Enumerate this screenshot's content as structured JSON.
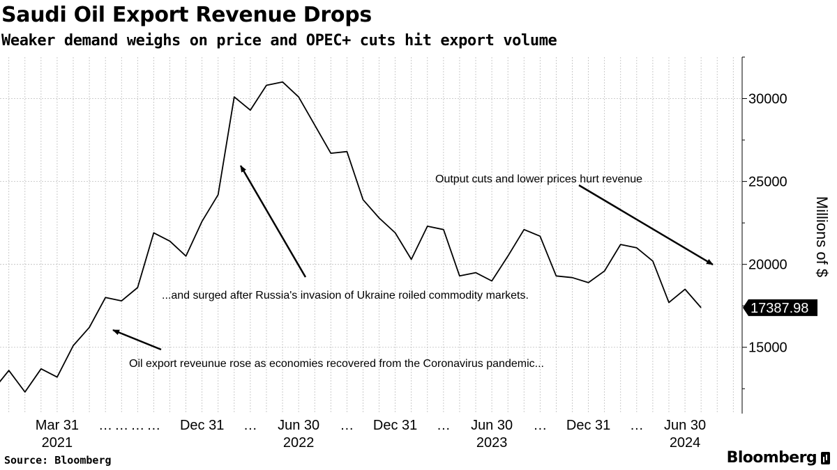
{
  "header": {
    "title": "Saudi Oil Export Revenue Drops",
    "subtitle": "Weaker demand weighs on price and OPEC+ cuts hit export volume"
  },
  "footer": {
    "source": "Source: Bloomberg",
    "logo": "Bloomberg"
  },
  "chart_data": {
    "type": "line",
    "title": "Saudi Oil Export Revenue Drops",
    "subtitle": "Weaker demand weighs on price and OPEC+ cuts hit export volume",
    "ylabel": "Millions of $",
    "xlabel": "",
    "ylim": [
      11000,
      32500
    ],
    "yticks": [
      15000,
      20000,
      25000,
      30000
    ],
    "xlim": [
      "2020-11",
      "2024-09"
    ],
    "grid": true,
    "x_tick_labels": [
      {
        "x": "2021-03",
        "label": "Mar 31"
      },
      {
        "x": "2021-06",
        "label": "…"
      },
      {
        "x": "2021-07",
        "label": "…"
      },
      {
        "x": "2021-08",
        "label": "…"
      },
      {
        "x": "2021-09",
        "label": "…"
      },
      {
        "x": "2021-12",
        "label": "Dec 31"
      },
      {
        "x": "2022-03",
        "label": "…"
      },
      {
        "x": "2022-06",
        "label": "Jun 30"
      },
      {
        "x": "2022-09",
        "label": "…"
      },
      {
        "x": "2022-12",
        "label": "Dec 31"
      },
      {
        "x": "2023-03",
        "label": "…"
      },
      {
        "x": "2023-06",
        "label": "Jun 30"
      },
      {
        "x": "2023-09",
        "label": "…"
      },
      {
        "x": "2023-12",
        "label": "Dec 31"
      },
      {
        "x": "2024-03",
        "label": "…"
      },
      {
        "x": "2024-06",
        "label": "Jun 30"
      }
    ],
    "year_labels": [
      {
        "x": "2021-03",
        "label": "2021"
      },
      {
        "x": "2022-06",
        "label": "2022"
      },
      {
        "x": "2023-06",
        "label": "2023"
      },
      {
        "x": "2024-06",
        "label": "2024"
      }
    ],
    "series": [
      {
        "x": [
          "2020-11",
          "2020-12",
          "2021-01",
          "2021-02",
          "2021-03",
          "2021-04",
          "2021-05",
          "2021-06",
          "2021-07",
          "2021-08",
          "2021-09",
          "2021-10",
          "2021-11",
          "2021-12",
          "2022-01",
          "2022-02",
          "2022-03",
          "2022-04",
          "2022-05",
          "2022-06",
          "2022-07",
          "2022-08",
          "2022-09",
          "2022-10",
          "2022-11",
          "2022-12",
          "2023-01",
          "2023-02",
          "2023-03",
          "2023-04",
          "2023-05",
          "2023-06",
          "2023-07",
          "2023-08",
          "2023-09",
          "2023-10",
          "2023-11",
          "2023-12",
          "2024-01",
          "2024-02",
          "2024-03",
          "2024-04",
          "2024-05",
          "2024-06",
          "2024-07"
        ],
        "values": [
          12400,
          13600,
          12300,
          13700,
          13200,
          15100,
          16200,
          18000,
          17800,
          18600,
          21900,
          21400,
          20500,
          22600,
          24200,
          30100,
          29300,
          30800,
          31000,
          30100,
          28400,
          26700,
          26800,
          23900,
          22800,
          21900,
          20300,
          22300,
          22100,
          19300,
          19500,
          19000,
          20500,
          22100,
          21700,
          19300,
          19200,
          18900,
          19600,
          21200,
          21000,
          20200,
          17700,
          18500,
          17387.98
        ]
      }
    ],
    "last_value_label": "17387.98",
    "annotations": [
      {
        "text": "Oil export reveunue rose as economies recovered from the Coronavirus pandemic..."
      },
      {
        "text": "...and surged after Russia's invasion of Ukraine roiled commodity markets."
      },
      {
        "text": "Output cuts and lower prices hurt revenue"
      }
    ],
    "colors": {
      "line": "#000000",
      "grid": "#bdbdbd",
      "background": "#ffffff"
    }
  }
}
